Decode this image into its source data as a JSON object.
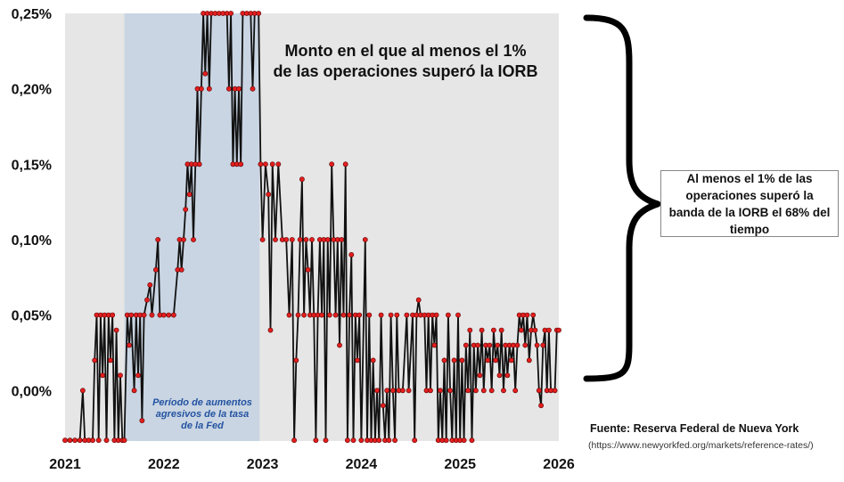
{
  "annotations": {
    "main_title_line1": "Monto en el que al menos el 1%",
    "main_title_line2": "de las operaciones superó la IORB",
    "shaded_label_line1": "Período de aumentos",
    "shaded_label_line2": "agresivos de la tasa",
    "shaded_label_line3": "de la Fed",
    "callout": "Al menos el 1% de las operaciones superó la banda de la IORB el 68% del tiempo",
    "source_title": "Fuente: Reserva Federal de Nueva York",
    "source_url": "(https://www.newyorkfed.org/markets/reference-rates/)"
  },
  "colors": {
    "plot_background": "#e6e6e6",
    "shaded_region": "#c9d5e3",
    "line": "#111111",
    "marker": "#e41e1e",
    "shaded_label": "#2453a0"
  },
  "chart_data": {
    "type": "line",
    "title": "",
    "xlabel": "",
    "ylabel": "",
    "x_ticks": [
      "2021",
      "2022",
      "2023",
      "2024",
      "2025",
      "2026"
    ],
    "y_ticks": [
      "0,00%",
      "0,05%",
      "0,10%",
      "0,15%",
      "0,20%",
      "0,25%"
    ],
    "ylim": [
      -0.0335,
      0.25
    ],
    "xlim": [
      2021.0,
      2026.0
    ],
    "shaded_period": [
      2021.6,
      2022.97
    ],
    "grid": false,
    "series": [
      {
        "points": [
          [
            2021.0,
            -0.033
          ],
          [
            2021.05,
            -0.033
          ],
          [
            2021.1,
            -0.033
          ],
          [
            2021.15,
            -0.033
          ],
          [
            2021.18,
            0.0
          ],
          [
            2021.2,
            -0.033
          ],
          [
            2021.24,
            -0.033
          ],
          [
            2021.28,
            -0.033
          ],
          [
            2021.3,
            0.02
          ],
          [
            2021.32,
            0.05
          ],
          [
            2021.34,
            -0.033
          ],
          [
            2021.36,
            0.05
          ],
          [
            2021.38,
            0.01
          ],
          [
            2021.4,
            0.05
          ],
          [
            2021.42,
            -0.033
          ],
          [
            2021.44,
            0.05
          ],
          [
            2021.46,
            0.02
          ],
          [
            2021.48,
            0.05
          ],
          [
            2021.5,
            -0.033
          ],
          [
            2021.52,
            0.04
          ],
          [
            2021.54,
            -0.033
          ],
          [
            2021.56,
            0.01
          ],
          [
            2021.58,
            -0.033
          ],
          [
            2021.6,
            -0.033
          ],
          [
            2021.63,
            0.05
          ],
          [
            2021.65,
            0.03
          ],
          [
            2021.67,
            0.05
          ],
          [
            2021.7,
            0.0
          ],
          [
            2021.72,
            0.05
          ],
          [
            2021.74,
            0.01
          ],
          [
            2021.76,
            0.05
          ],
          [
            2021.78,
            -0.02
          ],
          [
            2021.8,
            0.05
          ],
          [
            2021.83,
            0.06
          ],
          [
            2021.86,
            0.07
          ],
          [
            2021.88,
            0.05
          ],
          [
            2021.92,
            0.08
          ],
          [
            2021.94,
            0.1
          ],
          [
            2021.96,
            0.05
          ],
          [
            2022.0,
            0.05
          ],
          [
            2022.05,
            0.05
          ],
          [
            2022.1,
            0.05
          ],
          [
            2022.14,
            0.08
          ],
          [
            2022.16,
            0.1
          ],
          [
            2022.18,
            0.08
          ],
          [
            2022.2,
            0.1
          ],
          [
            2022.22,
            0.12
          ],
          [
            2022.24,
            0.15
          ],
          [
            2022.26,
            0.13
          ],
          [
            2022.28,
            0.15
          ],
          [
            2022.3,
            0.1
          ],
          [
            2022.32,
            0.15
          ],
          [
            2022.34,
            0.2
          ],
          [
            2022.36,
            0.15
          ],
          [
            2022.38,
            0.2
          ],
          [
            2022.4,
            0.25
          ],
          [
            2022.42,
            0.21
          ],
          [
            2022.44,
            0.25
          ],
          [
            2022.46,
            0.2
          ],
          [
            2022.48,
            0.25
          ],
          [
            2022.52,
            0.25
          ],
          [
            2022.56,
            0.25
          ],
          [
            2022.6,
            0.25
          ],
          [
            2022.64,
            0.25
          ],
          [
            2022.66,
            0.2
          ],
          [
            2022.68,
            0.25
          ],
          [
            2022.7,
            0.15
          ],
          [
            2022.72,
            0.2
          ],
          [
            2022.74,
            0.15
          ],
          [
            2022.76,
            0.2
          ],
          [
            2022.78,
            0.15
          ],
          [
            2022.8,
            0.25
          ],
          [
            2022.84,
            0.25
          ],
          [
            2022.88,
            0.25
          ],
          [
            2022.9,
            0.2
          ],
          [
            2022.92,
            0.25
          ],
          [
            2022.96,
            0.25
          ],
          [
            2022.98,
            0.15
          ],
          [
            2023.0,
            0.1
          ],
          [
            2023.03,
            0.15
          ],
          [
            2023.06,
            0.13
          ],
          [
            2023.08,
            0.04
          ],
          [
            2023.1,
            0.15
          ],
          [
            2023.13,
            0.1
          ],
          [
            2023.16,
            0.15
          ],
          [
            2023.2,
            0.1
          ],
          [
            2023.24,
            0.1
          ],
          [
            2023.27,
            0.05
          ],
          [
            2023.3,
            0.1
          ],
          [
            2023.32,
            -0.033
          ],
          [
            2023.34,
            0.02
          ],
          [
            2023.36,
            0.05
          ],
          [
            2023.38,
            0.1
          ],
          [
            2023.4,
            0.14
          ],
          [
            2023.42,
            0.05
          ],
          [
            2023.44,
            0.1
          ],
          [
            2023.46,
            0.08
          ],
          [
            2023.48,
            0.05
          ],
          [
            2023.5,
            0.1
          ],
          [
            2023.52,
            0.05
          ],
          [
            2023.54,
            -0.033
          ],
          [
            2023.56,
            0.05
          ],
          [
            2023.58,
            0.1
          ],
          [
            2023.6,
            0.05
          ],
          [
            2023.62,
            0.1
          ],
          [
            2023.64,
            -0.033
          ],
          [
            2023.66,
            0.1
          ],
          [
            2023.68,
            0.05
          ],
          [
            2023.7,
            0.15
          ],
          [
            2023.72,
            0.1
          ],
          [
            2023.74,
            0.05
          ],
          [
            2023.76,
            0.1
          ],
          [
            2023.78,
            0.03
          ],
          [
            2023.8,
            0.1
          ],
          [
            2023.82,
            0.05
          ],
          [
            2023.84,
            0.15
          ],
          [
            2023.86,
            -0.033
          ],
          [
            2023.88,
            0.05
          ],
          [
            2023.9,
            0.09
          ],
          [
            2023.92,
            -0.033
          ],
          [
            2023.94,
            0.05
          ],
          [
            2023.96,
            0.02
          ],
          [
            2023.98,
            0.05
          ],
          [
            2024.0,
            -0.033
          ],
          [
            2024.04,
            0.1
          ],
          [
            2024.06,
            -0.033
          ],
          [
            2024.08,
            0.05
          ],
          [
            2024.1,
            -0.033
          ],
          [
            2024.12,
            0.02
          ],
          [
            2024.14,
            -0.033
          ],
          [
            2024.16,
            0.0
          ],
          [
            2024.18,
            -0.033
          ],
          [
            2024.2,
            0.05
          ],
          [
            2024.22,
            -0.01
          ],
          [
            2024.24,
            -0.033
          ],
          [
            2024.26,
            0.0
          ],
          [
            2024.28,
            -0.033
          ],
          [
            2024.3,
            0.05
          ],
          [
            2024.32,
            0.0
          ],
          [
            2024.34,
            -0.033
          ],
          [
            2024.36,
            0.05
          ],
          [
            2024.38,
            0.0
          ],
          [
            2024.42,
            0.0
          ],
          [
            2024.46,
            0.05
          ],
          [
            2024.48,
            0.0
          ],
          [
            2024.52,
            0.05
          ],
          [
            2024.54,
            -0.033
          ],
          [
            2024.56,
            0.05
          ],
          [
            2024.58,
            0.06
          ],
          [
            2024.6,
            0.05
          ],
          [
            2024.64,
            0.05
          ],
          [
            2024.66,
            0.0
          ],
          [
            2024.68,
            0.05
          ],
          [
            2024.7,
            0.0
          ],
          [
            2024.72,
            0.05
          ],
          [
            2024.74,
            0.03
          ],
          [
            2024.76,
            0.05
          ],
          [
            2024.78,
            -0.033
          ],
          [
            2024.8,
            0.0
          ],
          [
            2024.82,
            -0.033
          ],
          [
            2024.84,
            0.02
          ],
          [
            2024.86,
            -0.033
          ],
          [
            2024.88,
            0.05
          ],
          [
            2024.9,
            0.0
          ],
          [
            2024.92,
            -0.033
          ],
          [
            2024.94,
            0.02
          ],
          [
            2024.96,
            -0.033
          ],
          [
            2024.98,
            0.05
          ],
          [
            2025.0,
            -0.033
          ],
          [
            2025.02,
            0.02
          ],
          [
            2025.04,
            -0.033
          ],
          [
            2025.06,
            0.03
          ],
          [
            2025.08,
            0.0
          ],
          [
            2025.1,
            0.04
          ],
          [
            2025.12,
            -0.033
          ],
          [
            2025.14,
            0.03
          ],
          [
            2025.16,
            0.0
          ],
          [
            2025.18,
            0.03
          ],
          [
            2025.2,
            0.01
          ],
          [
            2025.22,
            0.04
          ],
          [
            2025.24,
            0.0
          ],
          [
            2025.26,
            0.03
          ],
          [
            2025.28,
            0.02
          ],
          [
            2025.3,
            0.03
          ],
          [
            2025.32,
            0.0
          ],
          [
            2025.34,
            0.04
          ],
          [
            2025.36,
            0.02
          ],
          [
            2025.38,
            0.03
          ],
          [
            2025.4,
            0.01
          ],
          [
            2025.42,
            0.04
          ],
          [
            2025.44,
            0.0
          ],
          [
            2025.46,
            0.03
          ],
          [
            2025.48,
            0.01
          ],
          [
            2025.5,
            0.03
          ],
          [
            2025.52,
            0.02
          ],
          [
            2025.54,
            0.03
          ],
          [
            2025.56,
            0.0
          ],
          [
            2025.58,
            0.03
          ],
          [
            2025.6,
            0.05
          ],
          [
            2025.62,
            0.04
          ],
          [
            2025.64,
            0.05
          ],
          [
            2025.66,
            0.03
          ],
          [
            2025.68,
            0.05
          ],
          [
            2025.7,
            0.02
          ],
          [
            2025.72,
            0.04
          ],
          [
            2025.74,
            0.05
          ],
          [
            2025.76,
            0.04
          ],
          [
            2025.78,
            0.03
          ],
          [
            2025.8,
            0.0
          ],
          [
            2025.82,
            -0.01
          ],
          [
            2025.84,
            0.03
          ],
          [
            2025.86,
            0.04
          ],
          [
            2025.88,
            0.0
          ],
          [
            2025.9,
            0.04
          ],
          [
            2025.92,
            0.0
          ],
          [
            2025.96,
            0.0
          ],
          [
            2025.98,
            0.04
          ],
          [
            2026.0,
            0.04
          ]
        ]
      }
    ]
  }
}
